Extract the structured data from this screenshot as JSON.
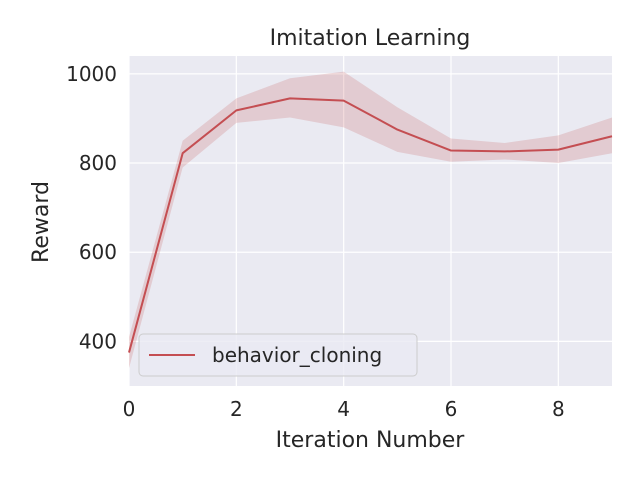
{
  "chart_data": {
    "type": "line",
    "title": "Imitation Learning",
    "xlabel": "Iteration Number",
    "ylabel": "Reward",
    "xlim": [
      0,
      9
    ],
    "ylim": [
      300,
      1040
    ],
    "xticks": [
      0,
      2,
      4,
      6,
      8
    ],
    "yticks": [
      400,
      600,
      800,
      1000
    ],
    "grid": true,
    "legend_position": "lower-left",
    "series": [
      {
        "name": "behavior_cloning",
        "color": "#c44e52",
        "x": [
          0,
          1,
          2,
          3,
          4,
          5,
          6,
          7,
          8,
          9
        ],
        "y": [
          375,
          822,
          918,
          945,
          940,
          875,
          828,
          826,
          830,
          860
        ],
        "lower": [
          340,
          790,
          890,
          902,
          880,
          825,
          803,
          808,
          800,
          822
        ],
        "upper": [
          410,
          850,
          945,
          990,
          1005,
          925,
          855,
          845,
          862,
          902
        ]
      }
    ]
  },
  "colors": {
    "axes_background": "#eaeaf2",
    "grid": "#ffffff",
    "line": "#c44e52",
    "band": "#c44e52"
  }
}
